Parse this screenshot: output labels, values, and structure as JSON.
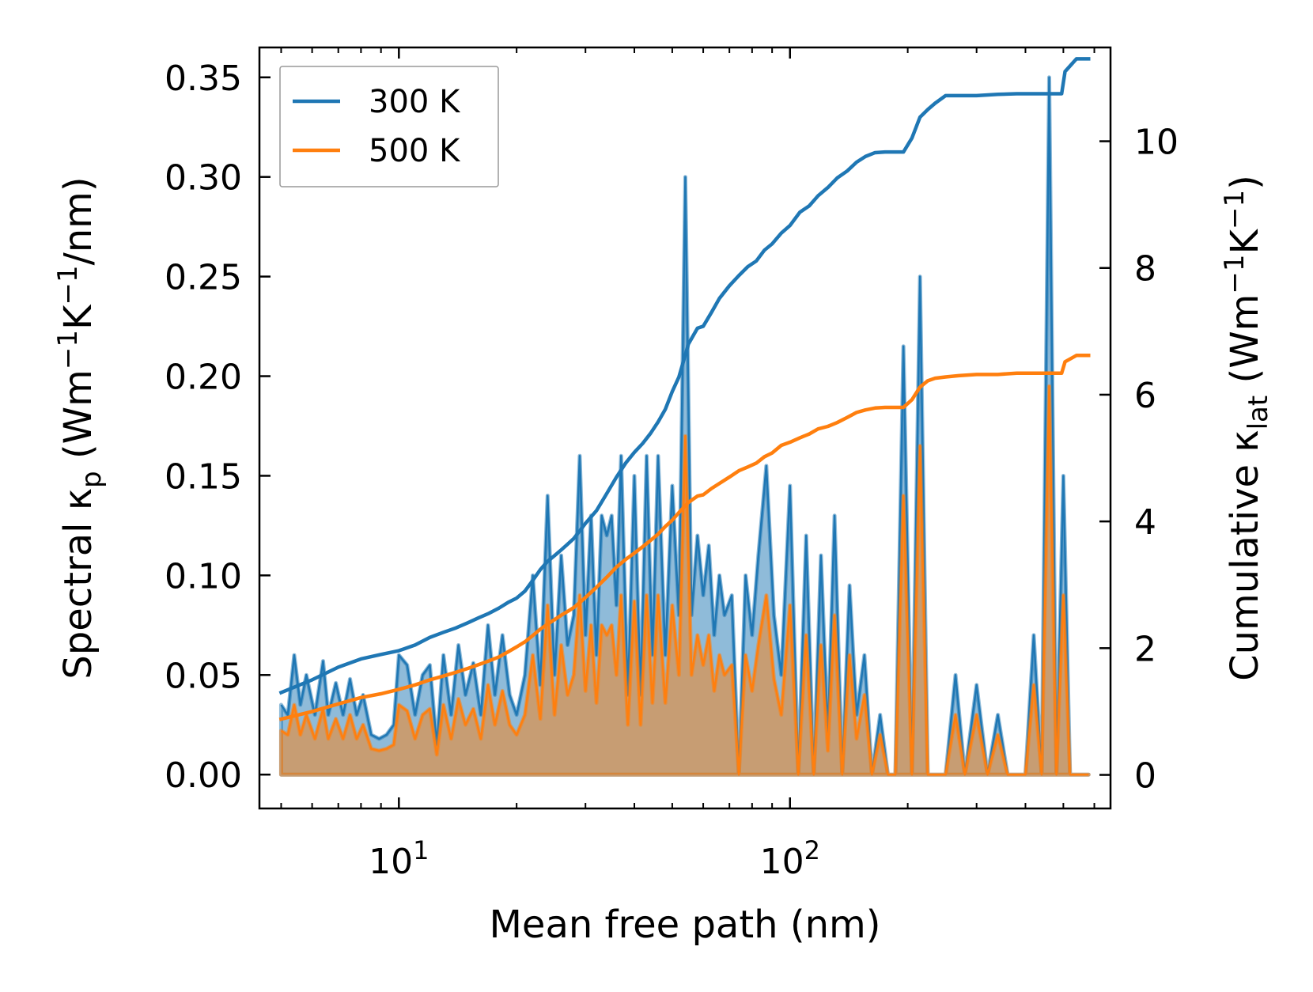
{
  "chart_data": {
    "type": "line",
    "xscale": "log",
    "xlim": [
      4.4,
      660
    ],
    "ylim_left": [
      -0.017,
      0.365
    ],
    "ylim_right": [
      -0.53,
      11.48
    ],
    "x_ticks": [
      {
        "value": 10,
        "base": "10",
        "exp": "1"
      },
      {
        "value": 100,
        "base": "10",
        "exp": "2"
      }
    ],
    "y_left_ticks": [
      {
        "value": 0.0,
        "label": "0.00"
      },
      {
        "value": 0.05,
        "label": "0.05"
      },
      {
        "value": 0.1,
        "label": "0.10"
      },
      {
        "value": 0.15,
        "label": "0.15"
      },
      {
        "value": 0.2,
        "label": "0.20"
      },
      {
        "value": 0.25,
        "label": "0.25"
      },
      {
        "value": 0.3,
        "label": "0.30"
      },
      {
        "value": 0.35,
        "label": "0.35"
      }
    ],
    "y_right_ticks": [
      {
        "value": 0,
        "label": "0"
      },
      {
        "value": 2,
        "label": "2"
      },
      {
        "value": 4,
        "label": "4"
      },
      {
        "value": 6,
        "label": "6"
      },
      {
        "value": 8,
        "label": "8"
      },
      {
        "value": 10,
        "label": "10"
      }
    ],
    "xlabel": "Mean free path (nm)",
    "ylabel_left": {
      "prefix": "Spectral κ",
      "sub": "p",
      "mid1": " (Wm",
      "sup1": "−1",
      "mid2": "K",
      "sup2": "−1",
      "suffix": "/nm)"
    },
    "ylabel_right": {
      "prefix": "Cumulative κ",
      "sub": "lat",
      "mid1": " (Wm",
      "sup1": "−1",
      "mid2": "K",
      "sup2": "−1",
      "suffix": ")"
    },
    "legend": {
      "position": "top-left"
    },
    "series": [
      {
        "name": "300 K",
        "color": "#1f77b4",
        "spectral": {
          "x": [
            5.0,
            5.2,
            5.4,
            5.6,
            5.8,
            6.1,
            6.4,
            6.6,
            6.9,
            7.2,
            7.5,
            7.8,
            8.1,
            8.5,
            8.9,
            9.3,
            9.7,
            10.0,
            10.5,
            11.0,
            11.5,
            12.0,
            12.5,
            13.0,
            13.6,
            14.2,
            14.8,
            15.5,
            16.2,
            16.9,
            17.6,
            18.4,
            19.2,
            20.0,
            21.0,
            22.0,
            23.0,
            24.0,
            25.0,
            26.0,
            27.0,
            28.0,
            29.0,
            30.0,
            31.0,
            32.0,
            33.0,
            34.0,
            35.0,
            36.0,
            37.0,
            38.5,
            40.0,
            41.5,
            43.0,
            44.5,
            46.0,
            48.0,
            50.0,
            52.0,
            54.0,
            56.0,
            58.0,
            60.0,
            62.0,
            64.0,
            66.0,
            68.0,
            71.0,
            74.0,
            77.0,
            80.0,
            83.0,
            87.0,
            91.0,
            95.0,
            100.0,
            105.0,
            110.0,
            115.0,
            120.0,
            125.0,
            130.0,
            136.0,
            142.0,
            148.0,
            155.0,
            162.0,
            170.0,
            178.0,
            186.0,
            195.0,
            205.0,
            215.0,
            225.0,
            235.0,
            250.0,
            265.0,
            280.0,
            300.0,
            320.0,
            340.0,
            360.0,
            380.0,
            400.0,
            420.0,
            440.0,
            460.0,
            480.0,
            500.0,
            520.0,
            540.0,
            560.0,
            580.0
          ],
          "y": [
            0.035,
            0.03,
            0.06,
            0.035,
            0.05,
            0.03,
            0.057,
            0.03,
            0.046,
            0.03,
            0.048,
            0.03,
            0.04,
            0.02,
            0.018,
            0.02,
            0.025,
            0.06,
            0.055,
            0.03,
            0.05,
            0.055,
            0.015,
            0.06,
            0.03,
            0.065,
            0.04,
            0.056,
            0.03,
            0.075,
            0.04,
            0.07,
            0.04,
            0.03,
            0.05,
            0.1,
            0.045,
            0.14,
            0.05,
            0.11,
            0.065,
            0.08,
            0.16,
            0.07,
            0.13,
            0.06,
            0.13,
            0.12,
            0.13,
            0.085,
            0.16,
            0.04,
            0.15,
            0.04,
            0.16,
            0.06,
            0.16,
            0.06,
            0.145,
            0.08,
            0.3,
            0.08,
            0.12,
            0.09,
            0.115,
            0.07,
            0.1,
            0.08,
            0.09,
            0.0,
            0.1,
            0.07,
            0.11,
            0.155,
            0.08,
            0.05,
            0.145,
            0.0,
            0.12,
            0.0,
            0.11,
            0.02,
            0.13,
            0.0,
            0.095,
            0.03,
            0.06,
            0.0,
            0.03,
            0.0,
            0.0,
            0.215,
            0.0,
            0.25,
            0.0,
            0.0,
            0.0,
            0.05,
            0.0,
            0.045,
            0.0,
            0.03,
            0.0,
            0.0,
            0.0,
            0.07,
            0.0,
            0.35,
            0.0,
            0.15,
            0.0,
            0.0,
            0.0,
            0.0
          ]
        },
        "cumulative": {
          "x": [
            5.0,
            6.0,
            7.0,
            8.0,
            9.0,
            10.0,
            11.0,
            12.0,
            13.0,
            14.0,
            15.0,
            16.0,
            17.0,
            18.0,
            19.0,
            20.0,
            21.0,
            22.0,
            23.0,
            24.0,
            25.0,
            26.0,
            27.0,
            28.0,
            29.0,
            30.0,
            32.0,
            34.0,
            36.0,
            38.0,
            40.0,
            42.0,
            44.0,
            46.0,
            48.0,
            50.0,
            52.0,
            55.0,
            58.0,
            60.0,
            63.0,
            66.0,
            70.0,
            74.0,
            78.0,
            82.0,
            86.0,
            90.0,
            95.0,
            100.0,
            106.0,
            112.0,
            118.0,
            125.0,
            132.0,
            140.0,
            148.0,
            156.0,
            165.0,
            175.0,
            185.0,
            195.0,
            205.0,
            215.0,
            225.0,
            235.0,
            250.0,
            270.0,
            300.0,
            340.0,
            380.0,
            420.0,
            460.0,
            495.0,
            505.0,
            540.0,
            580.0
          ],
          "y": [
            1.3,
            1.5,
            1.7,
            1.83,
            1.9,
            1.96,
            2.05,
            2.17,
            2.25,
            2.32,
            2.4,
            2.48,
            2.55,
            2.63,
            2.72,
            2.79,
            2.9,
            3.07,
            3.24,
            3.37,
            3.46,
            3.55,
            3.64,
            3.73,
            3.85,
            3.97,
            4.17,
            4.44,
            4.7,
            4.92,
            5.09,
            5.23,
            5.39,
            5.57,
            5.77,
            6.05,
            6.28,
            6.8,
            7.05,
            7.08,
            7.3,
            7.52,
            7.72,
            7.88,
            8.02,
            8.11,
            8.28,
            8.38,
            8.55,
            8.67,
            8.88,
            8.98,
            9.14,
            9.27,
            9.42,
            9.53,
            9.67,
            9.76,
            9.82,
            9.83,
            9.83,
            9.83,
            10.05,
            10.38,
            10.5,
            10.6,
            10.72,
            10.72,
            10.72,
            10.74,
            10.75,
            10.75,
            10.75,
            10.75,
            11.1,
            11.3,
            11.3
          ]
        }
      },
      {
        "name": "500 K",
        "color": "#ff7f0e",
        "spectral": {
          "x": [
            5.0,
            5.2,
            5.4,
            5.6,
            5.8,
            6.1,
            6.4,
            6.6,
            6.9,
            7.2,
            7.5,
            7.8,
            8.1,
            8.5,
            8.9,
            9.3,
            9.7,
            10.0,
            10.5,
            11.0,
            11.5,
            12.0,
            12.5,
            13.0,
            13.6,
            14.2,
            14.8,
            15.5,
            16.2,
            16.9,
            17.6,
            18.4,
            19.2,
            20.0,
            21.0,
            22.0,
            23.0,
            24.0,
            25.0,
            26.0,
            27.0,
            28.0,
            29.0,
            30.0,
            31.0,
            32.0,
            33.0,
            34.0,
            35.0,
            36.0,
            37.0,
            38.5,
            40.0,
            41.5,
            43.0,
            44.5,
            46.0,
            48.0,
            50.0,
            52.0,
            54.0,
            56.0,
            58.0,
            60.0,
            62.0,
            64.0,
            66.0,
            68.0,
            71.0,
            74.0,
            77.0,
            80.0,
            83.0,
            87.0,
            91.0,
            95.0,
            100.0,
            105.0,
            110.0,
            115.0,
            120.0,
            125.0,
            130.0,
            136.0,
            142.0,
            148.0,
            155.0,
            162.0,
            170.0,
            178.0,
            186.0,
            195.0,
            205.0,
            215.0,
            225.0,
            235.0,
            250.0,
            265.0,
            280.0,
            300.0,
            320.0,
            340.0,
            360.0,
            380.0,
            400.0,
            420.0,
            440.0,
            460.0,
            480.0,
            500.0,
            520.0,
            540.0,
            560.0,
            580.0
          ],
          "y": [
            0.022,
            0.02,
            0.035,
            0.02,
            0.03,
            0.018,
            0.033,
            0.018,
            0.028,
            0.018,
            0.03,
            0.018,
            0.025,
            0.013,
            0.012,
            0.013,
            0.015,
            0.035,
            0.032,
            0.018,
            0.03,
            0.033,
            0.01,
            0.035,
            0.018,
            0.038,
            0.025,
            0.033,
            0.018,
            0.045,
            0.025,
            0.042,
            0.025,
            0.02,
            0.03,
            0.06,
            0.028,
            0.085,
            0.03,
            0.065,
            0.04,
            0.05,
            0.09,
            0.042,
            0.075,
            0.036,
            0.075,
            0.07,
            0.075,
            0.05,
            0.09,
            0.025,
            0.087,
            0.025,
            0.09,
            0.036,
            0.09,
            0.036,
            0.085,
            0.05,
            0.17,
            0.05,
            0.07,
            0.055,
            0.07,
            0.042,
            0.06,
            0.05,
            0.055,
            0.0,
            0.06,
            0.042,
            0.065,
            0.09,
            0.048,
            0.03,
            0.085,
            0.0,
            0.07,
            0.0,
            0.065,
            0.012,
            0.08,
            0.0,
            0.06,
            0.018,
            0.04,
            0.0,
            0.02,
            0.0,
            0.0,
            0.14,
            0.0,
            0.165,
            0.0,
            0.0,
            0.0,
            0.03,
            0.0,
            0.03,
            0.0,
            0.02,
            0.0,
            0.0,
            0.0,
            0.045,
            0.0,
            0.195,
            0.0,
            0.09,
            0.0,
            0.0,
            0.0,
            0.0
          ]
        },
        "cumulative": {
          "x": [
            5.0,
            6.0,
            7.0,
            8.0,
            9.0,
            10.0,
            11.0,
            12.0,
            13.0,
            14.0,
            15.0,
            16.0,
            17.0,
            18.0,
            19.0,
            20.0,
            21.0,
            22.0,
            23.0,
            24.0,
            25.0,
            26.0,
            27.0,
            28.0,
            29.0,
            30.0,
            32.0,
            34.0,
            36.0,
            38.0,
            40.0,
            42.0,
            44.0,
            46.0,
            48.0,
            50.0,
            52.0,
            55.0,
            58.0,
            60.0,
            63.0,
            66.0,
            70.0,
            74.0,
            78.0,
            82.0,
            86.0,
            90.0,
            95.0,
            100.0,
            106.0,
            112.0,
            118.0,
            125.0,
            132.0,
            140.0,
            148.0,
            156.0,
            165.0,
            175.0,
            185.0,
            195.0,
            205.0,
            215.0,
            225.0,
            235.0,
            250.0,
            270.0,
            300.0,
            340.0,
            380.0,
            420.0,
            460.0,
            495.0,
            505.0,
            540.0,
            580.0
          ],
          "y": [
            0.88,
            1.0,
            1.12,
            1.22,
            1.28,
            1.35,
            1.42,
            1.5,
            1.56,
            1.62,
            1.68,
            1.74,
            1.8,
            1.86,
            1.94,
            2.02,
            2.1,
            2.2,
            2.3,
            2.38,
            2.45,
            2.52,
            2.58,
            2.64,
            2.72,
            2.8,
            2.96,
            3.12,
            3.28,
            3.4,
            3.5,
            3.6,
            3.7,
            3.8,
            3.92,
            4.02,
            4.14,
            4.3,
            4.4,
            4.42,
            4.52,
            4.6,
            4.7,
            4.8,
            4.86,
            4.92,
            5.02,
            5.08,
            5.2,
            5.25,
            5.32,
            5.38,
            5.46,
            5.5,
            5.56,
            5.64,
            5.72,
            5.76,
            5.79,
            5.8,
            5.8,
            5.8,
            5.92,
            6.12,
            6.22,
            6.26,
            6.28,
            6.3,
            6.32,
            6.32,
            6.34,
            6.34,
            6.34,
            6.34,
            6.52,
            6.62,
            6.62
          ]
        }
      }
    ]
  }
}
